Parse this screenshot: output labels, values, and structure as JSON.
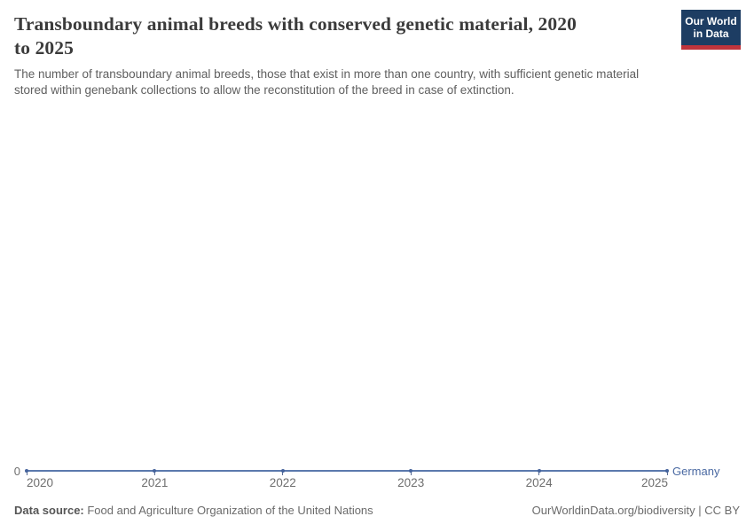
{
  "header": {
    "title_line1": "Transboundary animal breeds with conserved genetic material, 2020",
    "title_line2": "to 2025",
    "subtitle_line1": "The number of transboundary animal breeds, those that exist in more than one country, with sufficient genetic material",
    "subtitle_line2": "stored within genebank collections to allow the reconstitution of the breed in case of extinction.",
    "logo": {
      "line1": "Our World",
      "line2": "in Data"
    }
  },
  "chart": {
    "y_axis_zero_label": "0",
    "series_label": "Germany",
    "series_color": "#4C6A9C"
  },
  "footer": {
    "source_label": "Data source:",
    "source_text": " Food and Agriculture Organization of the United Nations",
    "attribution": "OurWorldinData.org/biodiversity | CC BY"
  },
  "chart_data": {
    "type": "line",
    "title": "Transboundary animal breeds with conserved genetic material, 2020 to 2025",
    "subtitle": "The number of transboundary animal breeds, those that exist in more than one country, with sufficient genetic material stored within genebank collections to allow the reconstitution of the breed in case of extinction.",
    "x": [
      2020,
      2021,
      2022,
      2023,
      2024,
      2025
    ],
    "series": [
      {
        "name": "Germany",
        "values": [
          0,
          0,
          0,
          0,
          0,
          0
        ],
        "color": "#4C6A9C"
      }
    ],
    "xlabel": "",
    "ylabel": "",
    "ylim": [
      0,
      0
    ],
    "grid": false,
    "legend_position": "end-of-line-label",
    "markers": true
  }
}
